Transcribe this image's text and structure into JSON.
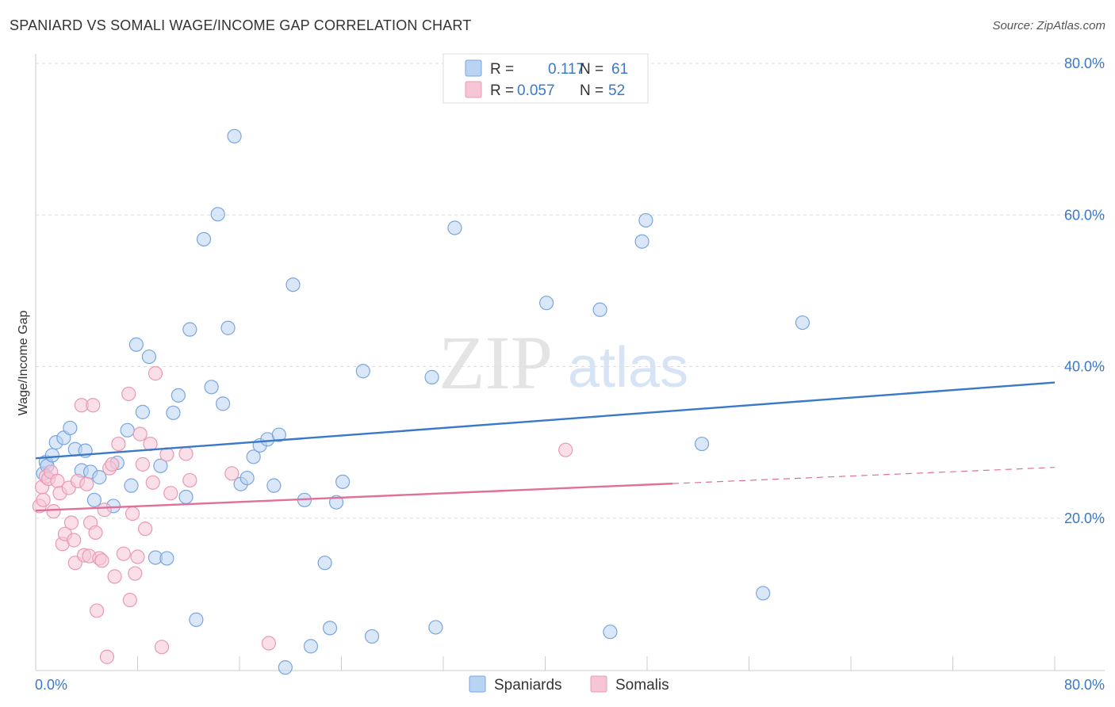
{
  "title": "SPANIARD VS SOMALI WAGE/INCOME GAP CORRELATION CHART",
  "source": "Source: ZipAtlas.com",
  "watermark": {
    "zip": "ZIP",
    "atlas": "atlas"
  },
  "colors": {
    "blue": "#3a78c9",
    "blue_fill": "#b9d3f2",
    "blue_stroke": "#7aa6dd",
    "pink": "#e0709a",
    "pink_fill": "#f6c5d5",
    "pink_stroke": "#e89ab4",
    "grid": "#dddddd"
  },
  "legend": {
    "rows": [
      {
        "r_label": "R = ",
        "r_value": "0.117",
        "n_label": "N = ",
        "n_value": "61"
      },
      {
        "r_label": "R = ",
        "r_value": "0.057",
        "n_label": "N = ",
        "n_value": "52"
      }
    ]
  },
  "chart_data": {
    "type": "scatter",
    "title": "SPANIARD VS SOMALI WAGE/INCOME GAP CORRELATION CHART",
    "xlabel": "",
    "ylabel": "Wage/Income Gap",
    "xlim": [
      0,
      80
    ],
    "ylim": [
      0,
      80
    ],
    "x_tick_labels": [
      "0.0%",
      "80.0%"
    ],
    "y_tick_labels": [
      "80.0%",
      "60.0%",
      "40.0%",
      "20.0%"
    ],
    "y_ticks": [
      80,
      60,
      40,
      20
    ],
    "legend_position": "bottom",
    "series": [
      {
        "name": "Spaniards",
        "color": "#3a78c9",
        "r": 0.117,
        "n": 61,
        "trend": {
          "x": [
            0,
            80
          ],
          "y": [
            27.9,
            37.9
          ],
          "dashed_from": null
        },
        "points": [
          [
            0.6,
            25.9
          ],
          [
            0.8,
            27.4
          ],
          [
            0.9,
            26.9
          ],
          [
            1.3,
            28.3
          ],
          [
            1.6,
            30.0
          ],
          [
            2.2,
            30.6
          ],
          [
            2.7,
            31.9
          ],
          [
            3.1,
            29.1
          ],
          [
            3.6,
            26.3
          ],
          [
            3.9,
            28.9
          ],
          [
            4.3,
            26.1
          ],
          [
            4.6,
            22.4
          ],
          [
            5.0,
            25.4
          ],
          [
            6.1,
            21.6
          ],
          [
            6.4,
            27.3
          ],
          [
            7.2,
            31.6
          ],
          [
            7.5,
            24.3
          ],
          [
            7.9,
            42.9
          ],
          [
            8.4,
            34.0
          ],
          [
            8.9,
            41.3
          ],
          [
            9.4,
            14.8
          ],
          [
            9.8,
            26.9
          ],
          [
            10.3,
            14.7
          ],
          [
            10.8,
            33.9
          ],
          [
            11.2,
            36.2
          ],
          [
            11.8,
            22.8
          ],
          [
            12.1,
            44.9
          ],
          [
            12.6,
            6.6
          ],
          [
            13.2,
            56.8
          ],
          [
            13.8,
            37.3
          ],
          [
            14.3,
            60.1
          ],
          [
            14.7,
            35.1
          ],
          [
            15.1,
            45.1
          ],
          [
            15.6,
            70.4
          ],
          [
            16.1,
            24.5
          ],
          [
            16.6,
            25.3
          ],
          [
            17.1,
            28.1
          ],
          [
            17.6,
            29.6
          ],
          [
            18.2,
            30.4
          ],
          [
            18.7,
            24.3
          ],
          [
            19.1,
            31.0
          ],
          [
            19.6,
            0.3
          ],
          [
            20.2,
            50.8
          ],
          [
            21.1,
            22.4
          ],
          [
            21.6,
            3.1
          ],
          [
            22.7,
            14.1
          ],
          [
            23.1,
            5.5
          ],
          [
            23.6,
            22.1
          ],
          [
            24.1,
            24.8
          ],
          [
            25.7,
            39.4
          ],
          [
            26.4,
            4.4
          ],
          [
            31.1,
            38.6
          ],
          [
            31.4,
            5.6
          ],
          [
            32.9,
            58.3
          ],
          [
            40.1,
            48.4
          ],
          [
            44.3,
            47.5
          ],
          [
            45.1,
            5.0
          ],
          [
            47.9,
            59.3
          ],
          [
            47.6,
            56.5
          ],
          [
            57.1,
            10.1
          ],
          [
            60.2,
            45.8
          ],
          [
            52.3,
            29.8
          ]
        ]
      },
      {
        "name": "Somalis",
        "color": "#e0709a",
        "r": 0.057,
        "n": 52,
        "trend": {
          "x": [
            0,
            80
          ],
          "y": [
            21.0,
            26.7
          ],
          "dashed_from": 50
        },
        "points": [
          [
            0.3,
            21.6
          ],
          [
            0.5,
            24.1
          ],
          [
            0.6,
            22.4
          ],
          [
            0.8,
            25.5
          ],
          [
            1.0,
            25.2
          ],
          [
            1.2,
            26.1
          ],
          [
            1.4,
            20.9
          ],
          [
            1.7,
            24.9
          ],
          [
            1.9,
            23.3
          ],
          [
            2.1,
            16.6
          ],
          [
            2.3,
            17.9
          ],
          [
            2.6,
            24.0
          ],
          [
            2.8,
            19.4
          ],
          [
            3.0,
            17.1
          ],
          [
            3.1,
            14.1
          ],
          [
            3.3,
            24.9
          ],
          [
            3.6,
            34.9
          ],
          [
            3.8,
            15.1
          ],
          [
            4.0,
            24.5
          ],
          [
            4.2,
            15.0
          ],
          [
            4.3,
            19.4
          ],
          [
            4.5,
            34.9
          ],
          [
            4.7,
            18.1
          ],
          [
            4.8,
            7.8
          ],
          [
            5.0,
            14.7
          ],
          [
            5.2,
            14.4
          ],
          [
            5.4,
            21.1
          ],
          [
            5.6,
            1.7
          ],
          [
            5.8,
            26.6
          ],
          [
            6.0,
            27.1
          ],
          [
            6.2,
            12.3
          ],
          [
            6.5,
            29.8
          ],
          [
            6.9,
            15.3
          ],
          [
            7.3,
            36.4
          ],
          [
            7.4,
            9.2
          ],
          [
            7.6,
            20.6
          ],
          [
            7.8,
            12.7
          ],
          [
            8.0,
            14.9
          ],
          [
            8.2,
            31.1
          ],
          [
            8.4,
            27.1
          ],
          [
            8.6,
            18.6
          ],
          [
            9.0,
            29.8
          ],
          [
            9.2,
            24.7
          ],
          [
            9.4,
            39.1
          ],
          [
            9.9,
            3.0
          ],
          [
            10.3,
            28.4
          ],
          [
            10.6,
            23.3
          ],
          [
            11.8,
            28.5
          ],
          [
            12.1,
            25.0
          ],
          [
            15.4,
            25.9
          ],
          [
            18.3,
            3.5
          ],
          [
            41.6,
            29.0
          ]
        ]
      }
    ]
  },
  "bottom_legend": [
    {
      "label": "Spaniards"
    },
    {
      "label": "Somalis"
    }
  ]
}
